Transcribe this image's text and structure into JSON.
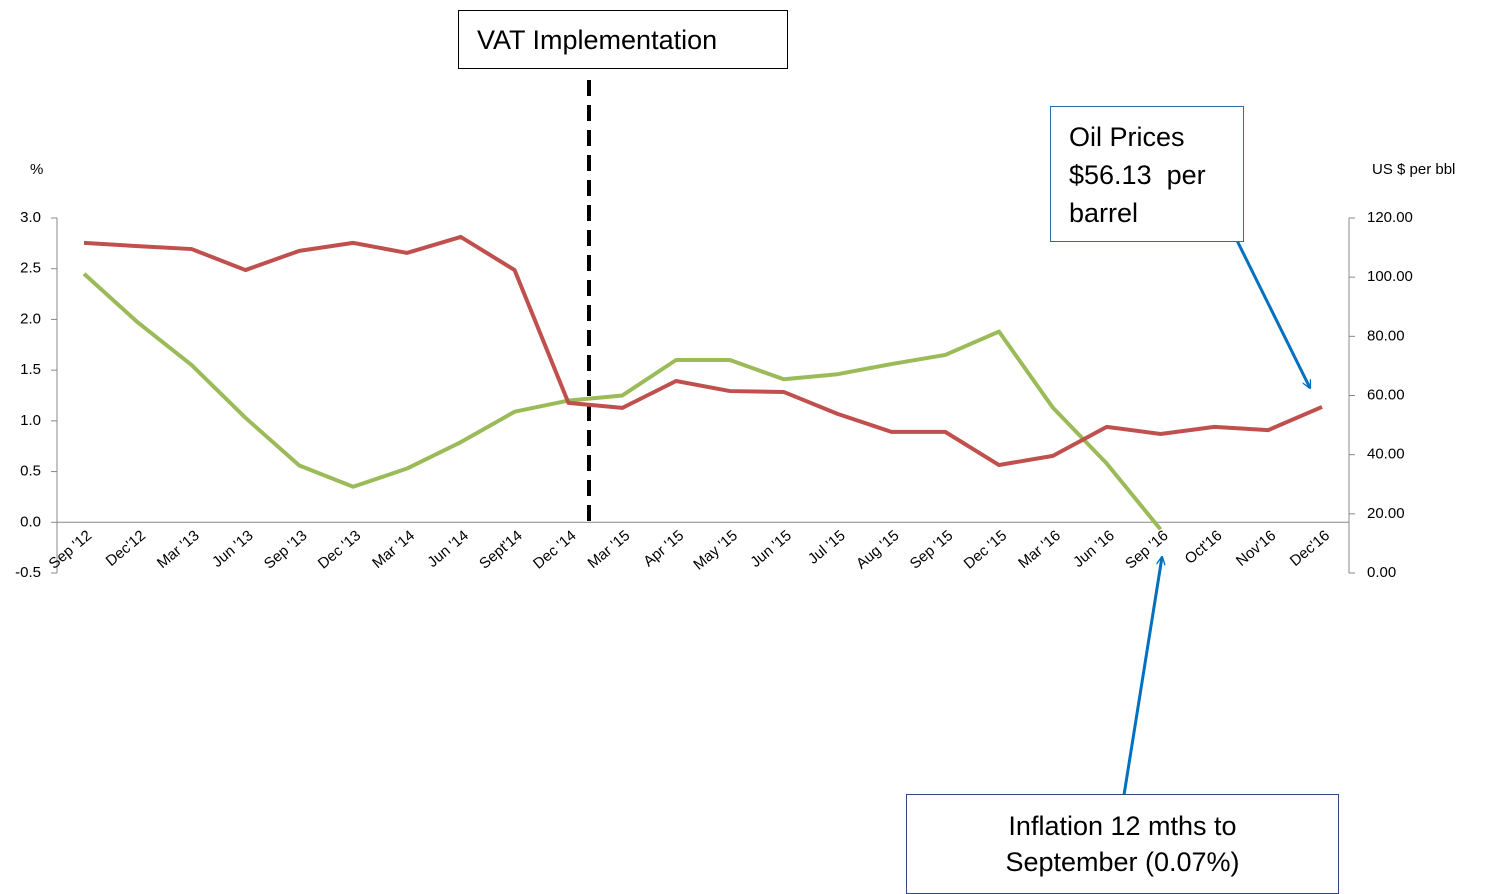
{
  "chart_data": {
    "type": "line",
    "y_label": "%",
    "y2_label": "US $ per bbl",
    "categories": [
      "Sep '12",
      "Dec'12",
      "Mar '13",
      "Jun '13",
      "Sep '13",
      "Dec '13",
      "Mar '14",
      "Jun '14",
      "Sept'14",
      "Dec '14",
      "Mar '15",
      "Apr '15",
      "May '15",
      "Jun '15",
      "Jul '15",
      "Aug '15",
      "Sep '15",
      "Dec '15",
      "Mar '16",
      "Jun '16",
      "Sep '16",
      "Oct'16",
      "Nov'16",
      "Dec'16"
    ],
    "series": [
      {
        "name": "Inflation",
        "color": "#9bbb59",
        "axis": "y",
        "values": [
          2.45,
          1.97,
          1.55,
          1.03,
          0.56,
          0.35,
          0.53,
          0.79,
          1.09,
          1.2,
          1.25,
          1.6,
          1.6,
          1.41,
          1.46,
          1.56,
          1.65,
          1.88,
          1.13,
          0.58,
          -0.07,
          null,
          null,
          null
        ]
      },
      {
        "name": "Oil Prices",
        "color": "#c0504d",
        "axis": "y2",
        "values": [
          111.6,
          110.5,
          109.5,
          102.4,
          108.9,
          111.6,
          108.2,
          113.6,
          102.4,
          57.5,
          55.8,
          64.9,
          61.5,
          61.2,
          53.8,
          47.7,
          47.7,
          36.5,
          39.6,
          49.4,
          47.0,
          49.4,
          48.3,
          56.13
        ]
      }
    ],
    "ylim": [
      -0.5,
      3.0
    ],
    "yticks": [
      -0.5,
      {
        "value": 0,
        "label": "0.0"
      },
      0.5,
      {
        "value": 1,
        "label": "1.0"
      },
      1.5,
      {
        "value": 2,
        "label": "2.0"
      },
      2.5,
      {
        "value": 3,
        "label": "3.0"
      }
    ],
    "y2lim": [
      0,
      120
    ],
    "y2ticks": [
      {
        "value": 0,
        "label": "0.00"
      },
      {
        "value": 20,
        "label": "20.00"
      },
      {
        "value": 40,
        "label": "40.00"
      },
      {
        "value": 60,
        "label": "60.00"
      },
      {
        "value": 80,
        "label": "80.00"
      },
      {
        "value": 100,
        "label": "100.00"
      },
      {
        "value": 120,
        "label": "120.00"
      }
    ],
    "annotations": [
      "VAT Implementation",
      "Oil Prices\n$56.13  per\nbarrel",
      "Inflation 12 mths to\nSeptember (0.07%)"
    ]
  }
}
